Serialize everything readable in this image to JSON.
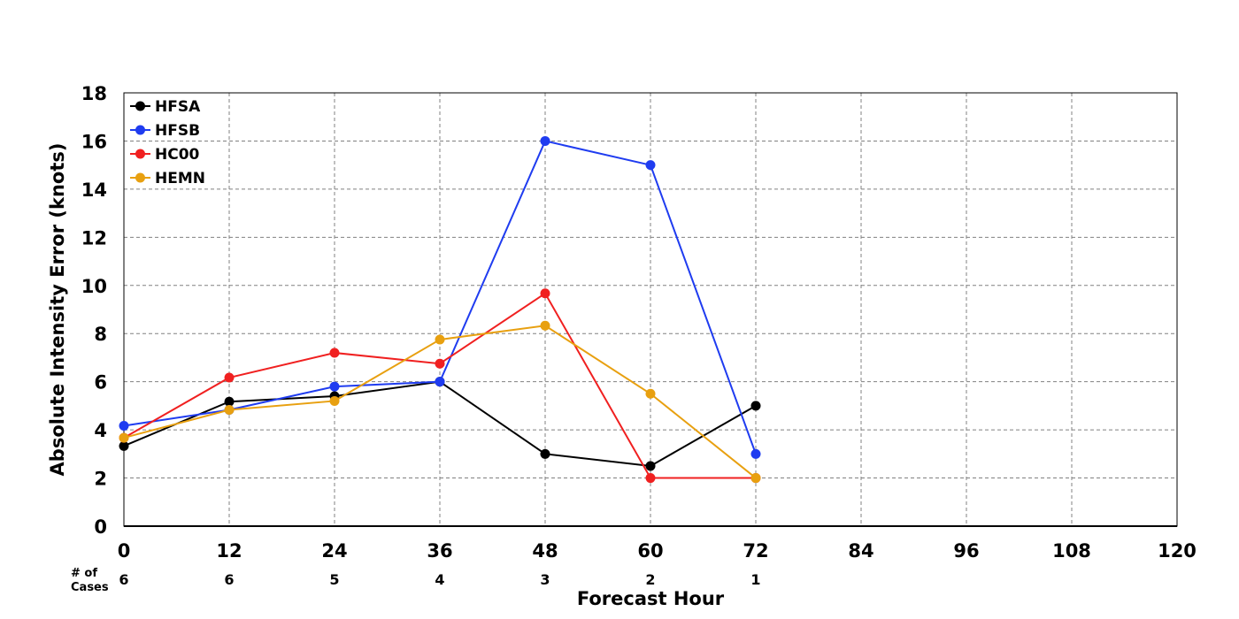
{
  "chart_data": {
    "type": "line",
    "xlabel": "Forecast Hour",
    "ylabel": "Absolute Intensity Error (knots)",
    "xlim": [
      0,
      120
    ],
    "ylim": [
      0,
      18
    ],
    "x_ticks": [
      "0",
      "12",
      "24",
      "36",
      "48",
      "60",
      "72",
      "84",
      "96",
      "108",
      "120"
    ],
    "y_ticks": [
      "0",
      "2",
      "4",
      "6",
      "8",
      "10",
      "12",
      "14",
      "16",
      "18"
    ],
    "grid": true,
    "legend_position": "top-left",
    "x": [
      0,
      12,
      24,
      36,
      48,
      60,
      72
    ],
    "series": [
      {
        "name": "HFSA",
        "color": "#000000",
        "values": [
          3.33,
          5.17,
          5.4,
          6.0,
          3.0,
          2.5,
          5.0
        ]
      },
      {
        "name": "HFSB",
        "color": "#1f3cf0",
        "values": [
          4.17,
          4.83,
          5.8,
          6.0,
          16.0,
          15.0,
          3.0
        ]
      },
      {
        "name": "HC00",
        "color": "#f02020",
        "values": [
          3.67,
          6.17,
          7.2,
          6.75,
          9.67,
          2.0,
          2.0
        ]
      },
      {
        "name": "HEMN",
        "color": "#e8a010",
        "values": [
          3.67,
          4.83,
          5.2,
          7.75,
          8.33,
          5.5,
          2.0
        ]
      }
    ],
    "cases": {
      "label_line1": "# of",
      "label_line2": "Cases",
      "counts": [
        "6",
        "6",
        "5",
        "4",
        "3",
        "2",
        "1"
      ]
    }
  }
}
